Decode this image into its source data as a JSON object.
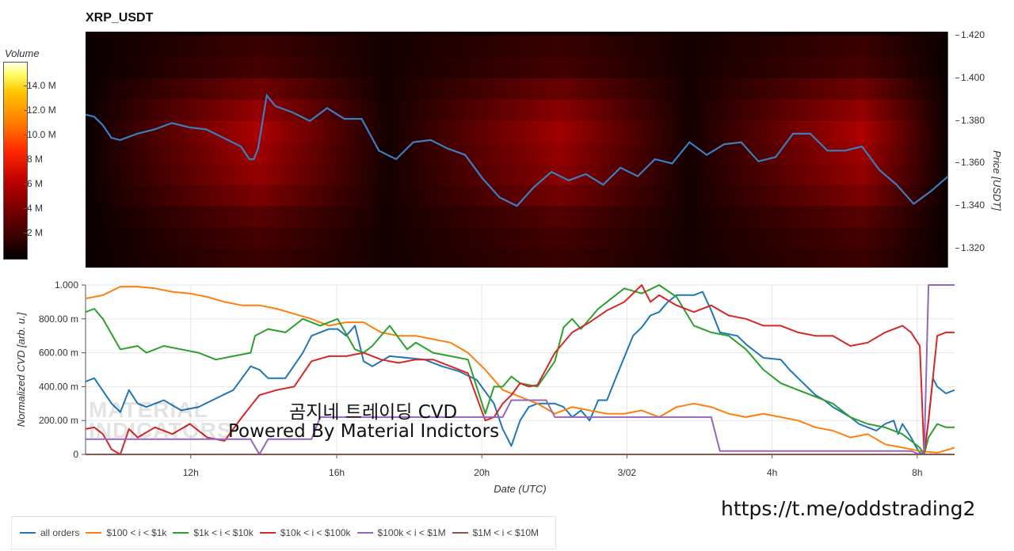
{
  "title": "XRP_USDT",
  "colorbar": {
    "title": "Volume",
    "ticks": [
      "14.0 M",
      "12.0 M",
      "10.0 M",
      "8 M",
      "6 M",
      "4 M",
      "2 M"
    ],
    "tick_values": [
      14,
      12,
      10,
      8,
      6,
      4,
      2
    ],
    "max": 16
  },
  "price_axis": {
    "label": "Price [USDT]",
    "ticks": [
      "1.420",
      "1.400",
      "1.380",
      "1.360",
      "1.340",
      "1.320"
    ],
    "tick_values": [
      1.42,
      1.4,
      1.38,
      1.36,
      1.34,
      1.32
    ],
    "range": [
      1.311,
      1.422
    ]
  },
  "watermark": {
    "line1": "MATERIAL",
    "line2": "INDICATORS"
  },
  "overlay_text": {
    "line1": "곰지네 트레이딩 CVD",
    "line2": "Powered By Material Indictors"
  },
  "link_text": "https://t.me/oddstrading2",
  "chart_data": [
    {
      "type": "heatmap",
      "title": "XRP_USDT",
      "ylabel": "Price [USDT]",
      "ylim": [
        1.311,
        1.422
      ],
      "colorbar_label": "Volume",
      "price_levels": [
        1.415,
        1.405,
        1.395,
        1.385,
        1.375,
        1.365,
        1.355,
        1.345,
        1.335,
        1.325,
        1.315
      ],
      "level_intensity": [
        0.08,
        0.12,
        0.3,
        0.45,
        0.55,
        0.5,
        0.45,
        0.35,
        0.2,
        0.12,
        0.08
      ],
      "price_series": {
        "color": "#3b7dbf",
        "x": [
          0.0,
          0.01,
          0.02,
          0.03,
          0.04,
          0.06,
          0.08,
          0.1,
          0.12,
          0.14,
          0.16,
          0.18,
          0.19,
          0.195,
          0.2,
          0.21,
          0.22,
          0.24,
          0.26,
          0.28,
          0.3,
          0.32,
          0.34,
          0.36,
          0.38,
          0.4,
          0.42,
          0.44,
          0.46,
          0.48,
          0.5,
          0.52,
          0.54,
          0.56,
          0.58,
          0.6,
          0.62,
          0.64,
          0.66,
          0.68,
          0.7,
          0.72,
          0.74,
          0.76,
          0.78,
          0.8,
          0.82,
          0.84,
          0.86,
          0.88,
          0.9,
          0.92,
          0.94,
          0.96,
          0.98,
          1.0
        ],
        "values": [
          1.383,
          1.382,
          1.378,
          1.372,
          1.371,
          1.374,
          1.376,
          1.379,
          1.377,
          1.376,
          1.372,
          1.368,
          1.362,
          1.362,
          1.367,
          1.392,
          1.387,
          1.384,
          1.38,
          1.386,
          1.381,
          1.381,
          1.366,
          1.362,
          1.37,
          1.371,
          1.367,
          1.364,
          1.353,
          1.344,
          1.34,
          1.349,
          1.356,
          1.352,
          1.355,
          1.35,
          1.358,
          1.354,
          1.362,
          1.36,
          1.37,
          1.364,
          1.369,
          1.37,
          1.361,
          1.363,
          1.374,
          1.374,
          1.366,
          1.366,
          1.368,
          1.357,
          1.35,
          1.341,
          1.347,
          1.354
        ]
      }
    },
    {
      "type": "line",
      "xlabel": "Date (UTC)",
      "ylabel": "Normalized CVD [arb. u.]",
      "ylim": [
        0,
        1.0
      ],
      "xlim": [
        0,
        1
      ],
      "x_ticks": [
        "12h",
        "16h",
        "20h",
        "3/02",
        "4h",
        "8h"
      ],
      "x_tick_positions": [
        0.121,
        0.289,
        0.456,
        0.623,
        0.79,
        0.957
      ],
      "y_ticks": [
        "1.000",
        "800.00 m",
        "600.00 m",
        "400.00 m",
        "200.00 m",
        "0"
      ],
      "y_tick_values": [
        1.0,
        0.8,
        0.6,
        0.4,
        0.2,
        0
      ],
      "series": [
        {
          "name": "all orders",
          "color": "#1f77b4",
          "x": [
            0,
            0.01,
            0.03,
            0.04,
            0.05,
            0.06,
            0.07,
            0.09,
            0.11,
            0.13,
            0.15,
            0.17,
            0.19,
            0.2,
            0.21,
            0.23,
            0.25,
            0.26,
            0.28,
            0.29,
            0.3,
            0.31,
            0.32,
            0.33,
            0.34,
            0.35,
            0.37,
            0.39,
            0.41,
            0.43,
            0.45,
            0.47,
            0.48,
            0.49,
            0.5,
            0.51,
            0.52,
            0.54,
            0.55,
            0.56,
            0.57,
            0.58,
            0.59,
            0.6,
            0.61,
            0.63,
            0.64,
            0.65,
            0.66,
            0.67,
            0.68,
            0.7,
            0.71,
            0.72,
            0.73,
            0.75,
            0.76,
            0.78,
            0.8,
            0.81,
            0.82,
            0.83,
            0.84,
            0.85,
            0.86,
            0.87,
            0.88,
            0.89,
            0.9,
            0.91,
            0.92,
            0.93,
            0.935,
            0.94,
            0.945,
            0.95,
            0.955,
            0.96,
            0.965,
            0.97,
            0.975,
            0.98,
            0.99,
            1.0
          ],
          "values": [
            0.43,
            0.45,
            0.3,
            0.25,
            0.38,
            0.3,
            0.28,
            0.32,
            0.26,
            0.28,
            0.33,
            0.38,
            0.52,
            0.5,
            0.45,
            0.45,
            0.6,
            0.7,
            0.74,
            0.74,
            0.7,
            0.76,
            0.55,
            0.52,
            0.55,
            0.58,
            0.57,
            0.56,
            0.52,
            0.49,
            0.44,
            0.3,
            0.15,
            0.05,
            0.2,
            0.28,
            0.3,
            0.3,
            0.28,
            0.22,
            0.26,
            0.2,
            0.32,
            0.32,
            0.45,
            0.7,
            0.75,
            0.82,
            0.84,
            0.9,
            0.94,
            0.94,
            0.96,
            0.85,
            0.72,
            0.7,
            0.65,
            0.57,
            0.56,
            0.5,
            0.45,
            0.4,
            0.35,
            0.32,
            0.28,
            0.25,
            0.22,
            0.18,
            0.16,
            0.14,
            0.18,
            0.2,
            0.12,
            0.18,
            0.14,
            0.1,
            0.05,
            0.01,
            0.0,
            0.2,
            0.45,
            0.4,
            0.36,
            0.38
          ]
        },
        {
          "name": "$100 < i < $1k",
          "color": "#ff7f0e",
          "x": [
            0,
            0.02,
            0.04,
            0.06,
            0.08,
            0.1,
            0.12,
            0.14,
            0.16,
            0.18,
            0.2,
            0.22,
            0.24,
            0.26,
            0.28,
            0.3,
            0.32,
            0.34,
            0.36,
            0.38,
            0.4,
            0.42,
            0.44,
            0.46,
            0.48,
            0.5,
            0.52,
            0.54,
            0.56,
            0.58,
            0.6,
            0.62,
            0.64,
            0.66,
            0.68,
            0.7,
            0.72,
            0.74,
            0.76,
            0.78,
            0.8,
            0.82,
            0.84,
            0.86,
            0.88,
            0.9,
            0.92,
            0.94,
            0.96,
            0.98,
            1.0
          ],
          "values": [
            0.92,
            0.94,
            0.99,
            0.99,
            0.98,
            0.96,
            0.95,
            0.93,
            0.9,
            0.88,
            0.88,
            0.86,
            0.83,
            0.8,
            0.76,
            0.78,
            0.78,
            0.72,
            0.7,
            0.7,
            0.68,
            0.66,
            0.6,
            0.5,
            0.38,
            0.34,
            0.3,
            0.24,
            0.28,
            0.26,
            0.24,
            0.24,
            0.26,
            0.22,
            0.28,
            0.3,
            0.28,
            0.24,
            0.22,
            0.24,
            0.22,
            0.2,
            0.16,
            0.14,
            0.1,
            0.12,
            0.06,
            0.04,
            0.02,
            0.01,
            0.04
          ]
        },
        {
          "name": "$1k < i < $10k",
          "color": "#2ca02c",
          "x": [
            0,
            0.01,
            0.02,
            0.04,
            0.06,
            0.07,
            0.09,
            0.11,
            0.13,
            0.15,
            0.17,
            0.19,
            0.195,
            0.21,
            0.23,
            0.25,
            0.27,
            0.29,
            0.31,
            0.32,
            0.33,
            0.35,
            0.37,
            0.38,
            0.4,
            0.42,
            0.44,
            0.46,
            0.47,
            0.48,
            0.49,
            0.5,
            0.52,
            0.54,
            0.55,
            0.56,
            0.57,
            0.59,
            0.6,
            0.62,
            0.64,
            0.66,
            0.68,
            0.7,
            0.72,
            0.74,
            0.76,
            0.78,
            0.8,
            0.82,
            0.84,
            0.86,
            0.88,
            0.9,
            0.92,
            0.94,
            0.95,
            0.96,
            0.965,
            0.97,
            0.98,
            0.99,
            1.0
          ],
          "values": [
            0.84,
            0.86,
            0.8,
            0.62,
            0.64,
            0.6,
            0.64,
            0.62,
            0.6,
            0.56,
            0.58,
            0.6,
            0.7,
            0.74,
            0.72,
            0.8,
            0.76,
            0.8,
            0.62,
            0.6,
            0.64,
            0.76,
            0.62,
            0.66,
            0.6,
            0.58,
            0.56,
            0.24,
            0.4,
            0.4,
            0.46,
            0.42,
            0.4,
            0.55,
            0.75,
            0.8,
            0.74,
            0.86,
            0.9,
            0.98,
            0.95,
            1.0,
            0.93,
            0.76,
            0.72,
            0.7,
            0.62,
            0.5,
            0.42,
            0.38,
            0.34,
            0.3,
            0.22,
            0.18,
            0.16,
            0.12,
            0.08,
            0.04,
            0.0,
            0.1,
            0.18,
            0.16,
            0.16
          ]
        },
        {
          "name": "$10k < i < $100k",
          "color": "#d62728",
          "x": [
            0,
            0.01,
            0.02,
            0.03,
            0.04,
            0.05,
            0.06,
            0.08,
            0.1,
            0.12,
            0.14,
            0.16,
            0.18,
            0.2,
            0.22,
            0.24,
            0.26,
            0.28,
            0.3,
            0.32,
            0.34,
            0.36,
            0.38,
            0.4,
            0.42,
            0.44,
            0.46,
            0.47,
            0.48,
            0.49,
            0.5,
            0.51,
            0.52,
            0.54,
            0.56,
            0.58,
            0.6,
            0.62,
            0.64,
            0.65,
            0.66,
            0.68,
            0.7,
            0.72,
            0.74,
            0.76,
            0.78,
            0.8,
            0.82,
            0.84,
            0.86,
            0.88,
            0.9,
            0.92,
            0.94,
            0.95,
            0.96,
            0.965,
            0.97,
            0.98,
            0.99,
            1.0
          ],
          "values": [
            0.15,
            0.16,
            0.12,
            0.03,
            0.0,
            0.15,
            0.1,
            0.16,
            0.12,
            0.18,
            0.1,
            0.08,
            0.22,
            0.35,
            0.38,
            0.4,
            0.55,
            0.58,
            0.58,
            0.6,
            0.56,
            0.54,
            0.56,
            0.56,
            0.52,
            0.48,
            0.2,
            0.22,
            0.3,
            0.35,
            0.42,
            0.4,
            0.41,
            0.6,
            0.72,
            0.78,
            0.85,
            0.9,
            1.0,
            0.9,
            0.94,
            0.88,
            0.84,
            0.88,
            0.82,
            0.8,
            0.76,
            0.76,
            0.72,
            0.7,
            0.7,
            0.64,
            0.66,
            0.72,
            0.76,
            0.72,
            0.64,
            0.0,
            0.2,
            0.7,
            0.72,
            0.72
          ]
        },
        {
          "name": "$100k < i < $1M",
          "color": "#9467bd",
          "x": [
            0,
            0.19,
            0.2,
            0.21,
            0.22,
            0.26,
            0.27,
            0.44,
            0.46,
            0.48,
            0.49,
            0.5,
            0.51,
            0.53,
            0.54,
            0.55,
            0.57,
            0.6,
            0.63,
            0.66,
            0.72,
            0.73,
            0.8,
            0.9,
            0.95,
            0.96,
            0.965,
            0.97,
            1.0
          ],
          "values": [
            0.09,
            0.09,
            0.0,
            0.09,
            0.09,
            0.09,
            0.22,
            0.22,
            0.22,
            0.22,
            0.32,
            0.32,
            0.32,
            0.32,
            0.22,
            0.22,
            0.22,
            0.22,
            0.22,
            0.22,
            0.22,
            0.02,
            0.02,
            0.02,
            0.02,
            0.0,
            0.0,
            1.0,
            1.0
          ]
        },
        {
          "name": "$1M < i < $10M",
          "color": "#8c564b",
          "x": [
            0,
            1.0
          ],
          "values": [
            0,
            0
          ]
        }
      ]
    }
  ]
}
